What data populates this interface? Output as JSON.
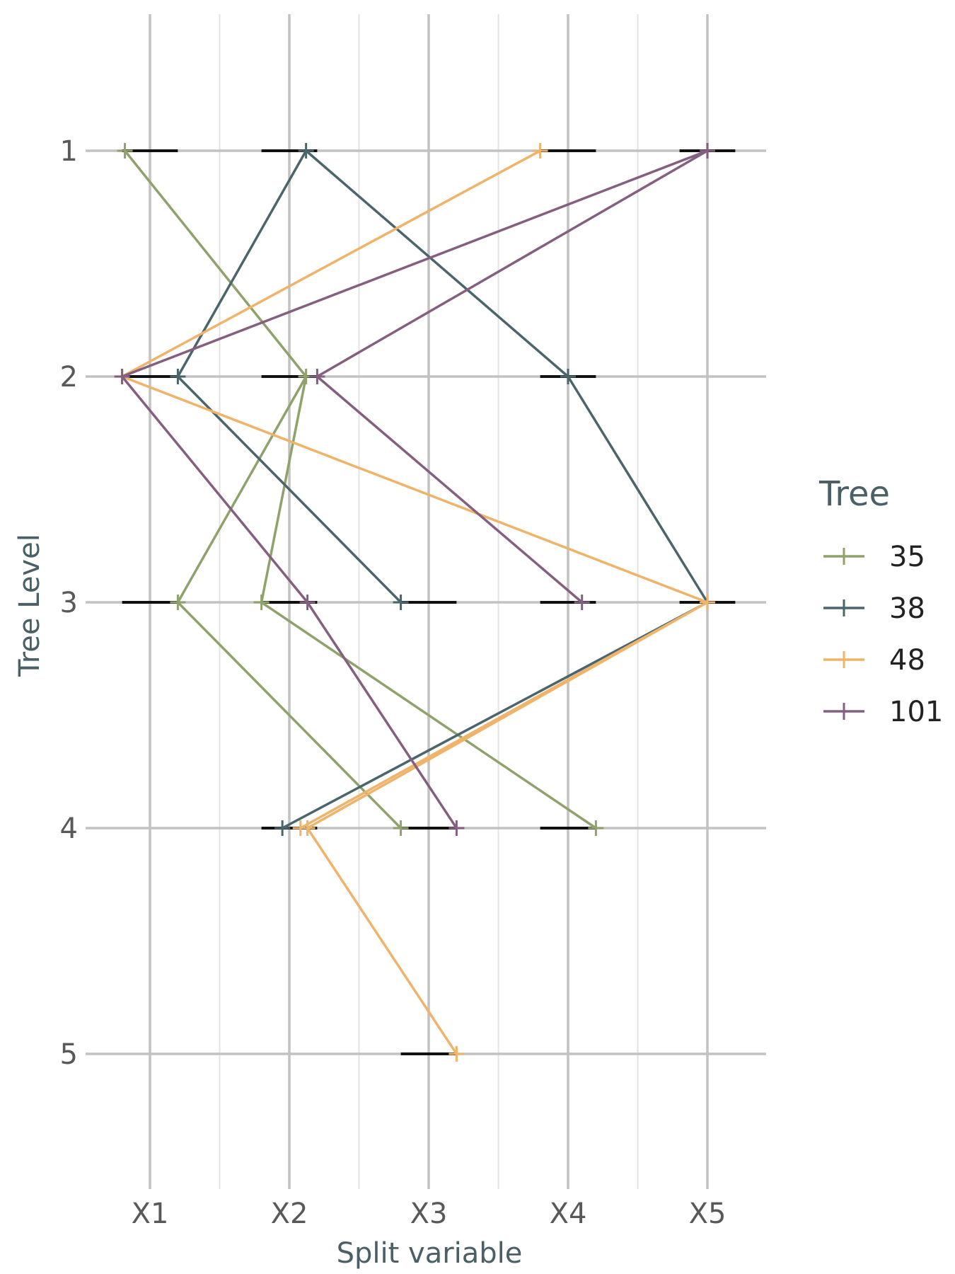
{
  "chart_data": {
    "type": "line",
    "xlabel": "Split variable",
    "ylabel": "Tree Level",
    "x_categories": [
      "X1",
      "X2",
      "X3",
      "X4",
      "X5"
    ],
    "y_ticks": [
      1,
      2,
      3,
      4,
      5
    ],
    "ylim": [
      0.4,
      5.6
    ],
    "y_reversed": true,
    "grid": true,
    "legend": {
      "title": "Tree",
      "position": "right"
    },
    "colors": {
      "35": "#8fa26c",
      "38": "#4a656b",
      "48": "#efb36a",
      "101": "#855f80"
    },
    "series": [
      {
        "name": "35",
        "segments": [
          [
            [
              0.82,
              1
            ],
            [
              2.12,
              2
            ]
          ],
          [
            [
              2.12,
              2
            ],
            [
              1.2,
              3
            ]
          ],
          [
            [
              2.12,
              2
            ],
            [
              1.8,
              3
            ]
          ],
          [
            [
              1.2,
              3
            ],
            [
              2.8,
              4
            ]
          ],
          [
            [
              1.8,
              3
            ],
            [
              4.2,
              4
            ]
          ]
        ]
      },
      {
        "name": "38",
        "segments": [
          [
            [
              2.12,
              1
            ],
            [
              1.2,
              2
            ]
          ],
          [
            [
              2.12,
              1
            ],
            [
              4.0,
              2
            ]
          ],
          [
            [
              1.2,
              2
            ],
            [
              2.8,
              3
            ]
          ],
          [
            [
              4.0,
              2
            ],
            [
              5.0,
              3
            ]
          ],
          [
            [
              5.0,
              3
            ],
            [
              1.95,
              4
            ]
          ]
        ]
      },
      {
        "name": "48",
        "segments": [
          [
            [
              3.8,
              1
            ],
            [
              0.8,
              2
            ]
          ],
          [
            [
              0.8,
              2
            ],
            [
              5.0,
              3
            ]
          ],
          [
            [
              5.0,
              3
            ],
            [
              2.08,
              4
            ]
          ],
          [
            [
              5.0,
              3
            ],
            [
              2.13,
              4
            ]
          ],
          [
            [
              2.13,
              4
            ],
            [
              3.2,
              5
            ]
          ]
        ]
      },
      {
        "name": "101",
        "segments": [
          [
            [
              5.0,
              1
            ],
            [
              0.8,
              2
            ]
          ],
          [
            [
              5.0,
              1
            ],
            [
              2.2,
              2
            ]
          ],
          [
            [
              0.8,
              2
            ],
            [
              2.13,
              3
            ]
          ],
          [
            [
              2.2,
              2
            ],
            [
              4.1,
              3
            ]
          ],
          [
            [
              2.13,
              3
            ],
            [
              3.2,
              4
            ]
          ]
        ]
      }
    ],
    "range_bars": [
      {
        "level": 1,
        "from": 0.8,
        "to": 1.2
      },
      {
        "level": 1,
        "from": 1.8,
        "to": 2.2
      },
      {
        "level": 1,
        "from": 3.8,
        "to": 4.2
      },
      {
        "level": 1,
        "from": 4.8,
        "to": 5.2
      },
      {
        "level": 2,
        "from": 0.8,
        "to": 1.2
      },
      {
        "level": 2,
        "from": 1.8,
        "to": 2.2
      },
      {
        "level": 2,
        "from": 3.8,
        "to": 4.2
      },
      {
        "level": 3,
        "from": 0.8,
        "to": 1.2
      },
      {
        "level": 3,
        "from": 1.8,
        "to": 2.2
      },
      {
        "level": 3,
        "from": 2.8,
        "to": 3.2
      },
      {
        "level": 3,
        "from": 3.8,
        "to": 4.2
      },
      {
        "level": 3,
        "from": 4.8,
        "to": 5.2
      },
      {
        "level": 4,
        "from": 1.8,
        "to": 2.2
      },
      {
        "level": 4,
        "from": 2.8,
        "to": 3.2
      },
      {
        "level": 4,
        "from": 3.8,
        "to": 4.2
      },
      {
        "level": 5,
        "from": 2.8,
        "to": 3.2
      }
    ]
  }
}
